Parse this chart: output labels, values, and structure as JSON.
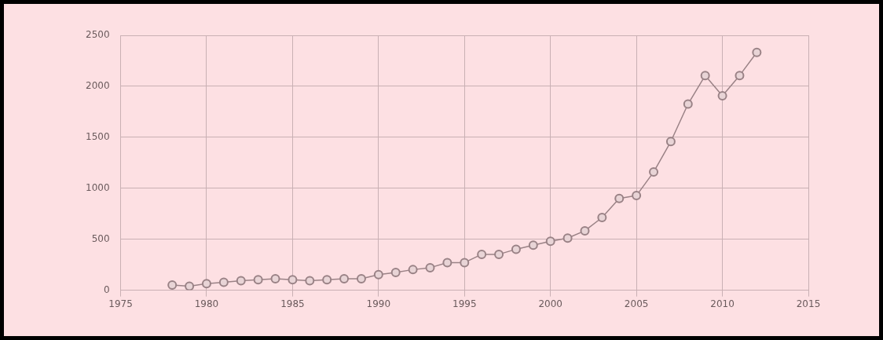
{
  "chart_data": {
    "type": "line",
    "x": [
      1978,
      1979,
      1980,
      1981,
      1982,
      1983,
      1984,
      1985,
      1986,
      1987,
      1988,
      1989,
      1990,
      1991,
      1992,
      1993,
      1994,
      1995,
      1996,
      1997,
      1998,
      1999,
      2000,
      2001,
      2002,
      2003,
      2004,
      2005,
      2006,
      2007,
      2008,
      2009,
      2010,
      2011,
      2012
    ],
    "series": [
      {
        "color": "#9a8286",
        "values": [
          50,
          40,
          65,
          78,
          93,
          103,
          112,
          103,
          93,
          103,
          112,
          112,
          153,
          174,
          202,
          221,
          271,
          271,
          352,
          352,
          402,
          442,
          480,
          511,
          583,
          713,
          900,
          928,
          1159,
          1458,
          1826,
          2106,
          1907,
          2106,
          2333
        ]
      }
    ],
    "xlim": [
      1975,
      2015
    ],
    "xticks": [
      1975,
      1980,
      1985,
      1990,
      1995,
      2000,
      2005,
      2010,
      2015
    ],
    "ylim": [
      0,
      2500
    ],
    "yticks": [
      0,
      500,
      1000,
      1500,
      2000,
      2500
    ],
    "grid": true,
    "legend": false,
    "marker": "circle",
    "line_style": "solid"
  }
}
